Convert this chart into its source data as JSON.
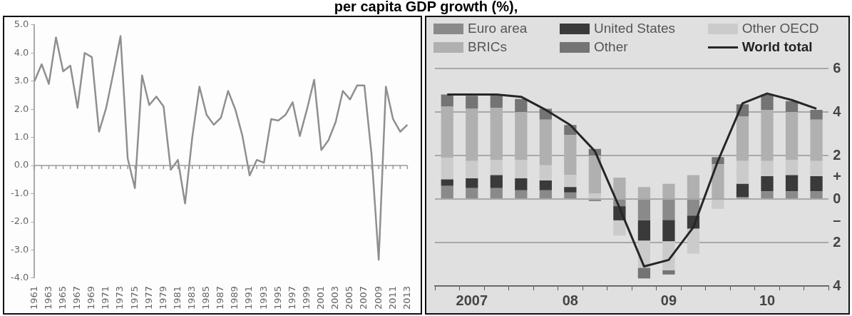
{
  "chart_data": [
    {
      "type": "line",
      "title": "per capita GDP growth (%),",
      "categories": [
        "1961",
        null,
        "1963",
        null,
        "1965",
        null,
        "1967",
        null,
        "1969",
        null,
        "1971",
        null,
        "1973",
        null,
        "1975",
        null,
        "1977",
        null,
        "1979",
        null,
        "1981",
        null,
        "1983",
        null,
        "1985",
        null,
        "1987",
        null,
        "1989",
        null,
        "1991",
        null,
        "1993",
        null,
        "1995",
        null,
        "1997",
        null,
        "1999",
        null,
        "2001",
        null,
        "2003",
        null,
        "2005",
        null,
        "2007",
        null,
        "2009",
        null,
        "2011",
        null,
        "2013"
      ],
      "series": [
        {
          "color": "#8f8f8f",
          "values": [
            3.0,
            3.6,
            2.9,
            4.55,
            3.35,
            3.55,
            2.05,
            4.0,
            3.85,
            1.2,
            2.05,
            3.3,
            4.6,
            0.25,
            -0.8,
            3.2,
            2.15,
            2.45,
            2.1,
            -0.15,
            0.2,
            -1.35,
            1.0,
            2.8,
            1.8,
            1.45,
            1.7,
            2.65,
            2.0,
            1.05,
            -0.35,
            0.2,
            0.1,
            1.65,
            1.6,
            1.8,
            2.25,
            1.05,
            2.0,
            3.05,
            0.55,
            0.9,
            1.55,
            2.65,
            2.35,
            2.85,
            2.85,
            0.4,
            -3.35,
            2.8,
            1.65,
            1.2,
            1.45
          ]
        }
      ],
      "ylim": [
        -4,
        5
      ],
      "yticks": [
        {
          "value": 5,
          "label": "5.0"
        },
        {
          "value": 4,
          "label": "4.0"
        },
        {
          "value": 3,
          "label": "3.0"
        },
        {
          "value": 2,
          "label": "2.0"
        },
        {
          "value": 1,
          "label": "1.0"
        },
        {
          "value": 0,
          "label": "0.0"
        },
        {
          "value": -1,
          "label": "-1.0"
        },
        {
          "value": -2,
          "label": "-2.0"
        },
        {
          "value": -3,
          "label": "-3.0"
        },
        {
          "value": -4,
          "label": "-4.0"
        }
      ],
      "ref_lines": [
        {
          "axis": "y",
          "value": 0,
          "color": "#999999"
        }
      ],
      "grid": false,
      "legend": false,
      "marker": "none"
    },
    {
      "type": "bar",
      "stacked": true,
      "grid": "y",
      "legend": "top",
      "marker": "none",
      "categories": [
        null,
        "2007",
        null,
        null,
        null,
        "08",
        null,
        null,
        null,
        "09",
        null,
        null,
        null,
        "10",
        null,
        null
      ],
      "series": [
        {
          "name": "Euro area",
          "color": "#8a8a8a",
          "values": [
            0.6,
            0.5,
            0.5,
            0.4,
            0.4,
            0.3,
            -0.1,
            -0.33,
            -0.98,
            -0.96,
            -0.76,
            0,
            0.1,
            0.35,
            0.35,
            0.35
          ]
        },
        {
          "name": "United States",
          "color": "#3a3a3a",
          "values": [
            0.3,
            0.45,
            0.6,
            0.55,
            0.45,
            0.25,
            0,
            -0.65,
            -0.93,
            -0.98,
            -0.6,
            0,
            0.6,
            0.7,
            0.75,
            0.7
          ]
        },
        {
          "name": "Other OECD",
          "color": "#cbcbcb",
          "values": [
            1.0,
            0.8,
            0.7,
            0.85,
            0.7,
            0.55,
            0.25,
            -0.7,
            -1.25,
            -1.33,
            -1.15,
            -0.45,
            1.05,
            0.7,
            0.7,
            0.7
          ]
        },
        {
          "name": "BRICs",
          "color": "#b0b0b0",
          "values": [
            2.35,
            2.4,
            2.4,
            2.2,
            2.1,
            1.85,
            1.75,
            0.98,
            0.55,
            0.7,
            1.1,
            1.6,
            2.05,
            2.35,
            2.2,
            1.9
          ]
        },
        {
          "name": "Other",
          "color": "#747474",
          "values": [
            0.55,
            0.6,
            0.6,
            0.6,
            0.5,
            0.45,
            0.3,
            0,
            -0.49,
            -0.2,
            0,
            0.33,
            0.55,
            0.7,
            0.5,
            0.45
          ]
        },
        {
          "name": "World total",
          "type": "line",
          "color": "#262626",
          "values": [
            4.8,
            4.8,
            4.8,
            4.7,
            4.1,
            3.4,
            2.2,
            -0.4,
            -3.1,
            -2.8,
            -1.3,
            1.75,
            4.4,
            4.85,
            4.55,
            4.15
          ]
        }
      ],
      "ylim": [
        -4,
        6
      ],
      "yticks": [
        {
          "value": 6,
          "label": "6"
        },
        {
          "value": 4,
          "label": "4"
        },
        {
          "value": 2,
          "label": "2"
        },
        {
          "value": 1,
          "label": "+"
        },
        {
          "value": 0,
          "label": "0"
        },
        {
          "value": -1,
          "label": "–"
        },
        {
          "value": -2,
          "label": "2"
        },
        {
          "value": -4,
          "label": "4"
        }
      ]
    }
  ]
}
